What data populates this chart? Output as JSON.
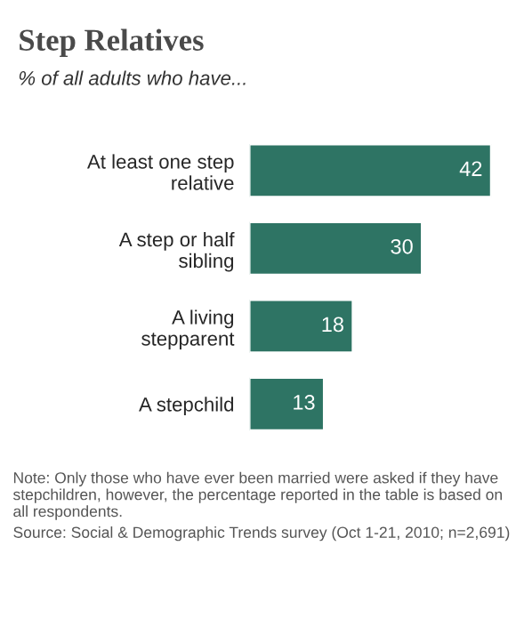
{
  "chart_data": {
    "type": "bar",
    "orientation": "horizontal",
    "title": "Step Relatives",
    "subtitle": "% of all adults who have...",
    "categories": [
      "At least one step\nrelative",
      "A step or half\nsibling",
      "A living\nstepparent",
      "A stepchild"
    ],
    "values": [
      42,
      30,
      18,
      13
    ],
    "color": "#2e7464",
    "data_labels": true,
    "grid": false,
    "legend": false,
    "annotations": [
      "Note: Only those who have ever been married were asked if they have stepchildren, however, the percentage reported in the table is based on all respondents.",
      "Source: Social & Demographic Trends survey (Oct 1-21, 2010; n=2,691)"
    ]
  }
}
